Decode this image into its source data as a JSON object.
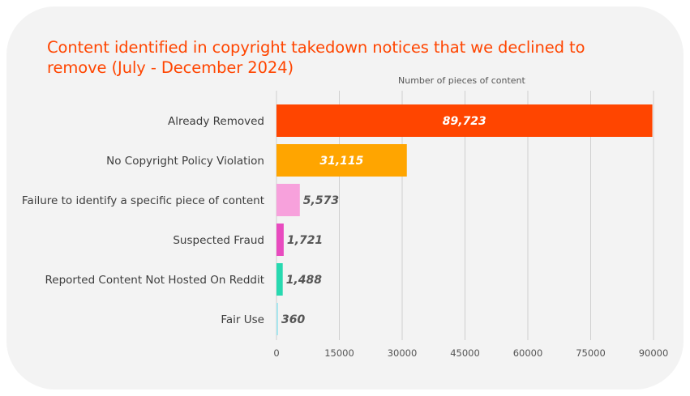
{
  "chart_data": {
    "type": "bar",
    "orientation": "horizontal",
    "title": "Content identified in copyright takedown notices that we declined to remove (July - December 2024)",
    "xlabel": "Number of pieces of content",
    "ylabel": "",
    "xlim": [
      0,
      90000
    ],
    "xticks": [
      0,
      15000,
      30000,
      45000,
      60000,
      75000,
      90000
    ],
    "grid": true,
    "categories": [
      "Already Removed",
      "No Copyright Policy Violation",
      "Failure to identify a specific piece of content",
      "Suspected Fraud",
      "Reported Content Not Hosted On Reddit",
      "Fair Use"
    ],
    "values": [
      89723,
      31115,
      5573,
      1721,
      1488,
      360
    ],
    "value_labels": [
      "89,723",
      "31,115",
      "5,573",
      "1,721",
      "1,488",
      "360"
    ],
    "colors": [
      "#ff4500",
      "#ffa500",
      "#f7a1dc",
      "#e84bbf",
      "#27d9b0",
      "#a8e6ef"
    ],
    "label_colors": [
      "#ffffff",
      "#ffffff",
      "#555555",
      "#555555",
      "#555555",
      "#555555"
    ]
  }
}
